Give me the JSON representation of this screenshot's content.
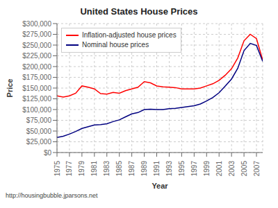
{
  "chart_data": {
    "type": "line",
    "title": "United States House Prices",
    "x_label": "Year",
    "y_label": "Price",
    "annotations": [
      "http://housingbubble.jparsons.net"
    ],
    "x": [
      1975,
      1976,
      1977,
      1978,
      1979,
      1980,
      1981,
      1982,
      1983,
      1984,
      1985,
      1986,
      1987,
      1988,
      1989,
      1990,
      1991,
      1992,
      1993,
      1994,
      1995,
      1996,
      1997,
      1998,
      1999,
      2000,
      2001,
      2002,
      2003,
      2004,
      2005,
      2006,
      2007,
      2008
    ],
    "series": [
      {
        "name": "Inflation-adjusted house prices",
        "color": "red",
        "values": [
          132000,
          129000,
          132000,
          138000,
          155000,
          152000,
          148000,
          137000,
          136000,
          140000,
          138000,
          144000,
          148000,
          152000,
          165000,
          162000,
          155000,
          153000,
          152000,
          151000,
          148000,
          148000,
          148000,
          150000,
          155000,
          160000,
          168000,
          180000,
          195000,
          220000,
          260000,
          275000,
          265000,
          215000
        ]
      },
      {
        "name": "Nominal house prices",
        "color": "#000080",
        "values": [
          35000,
          38000,
          43000,
          49000,
          56000,
          60000,
          64000,
          65000,
          67000,
          72000,
          76000,
          83000,
          90000,
          93000,
          100000,
          101000,
          100000,
          100000,
          102000,
          103000,
          105000,
          107000,
          109000,
          113000,
          120000,
          128000,
          139000,
          155000,
          171000,
          196000,
          237000,
          254000,
          249000,
          212000
        ]
      }
    ],
    "xlim": [
      1975,
      2008
    ],
    "xticks": [
      1975,
      1977,
      1979,
      1981,
      1983,
      1985,
      1987,
      1989,
      1991,
      1993,
      1995,
      1997,
      1999,
      2001,
      2003,
      2005,
      2007
    ],
    "ylim": [
      0,
      300000
    ],
    "yticks": [
      {
        "value": 0,
        "label": "$0"
      },
      {
        "value": 25000,
        "label": "$25,000"
      },
      {
        "value": 50000,
        "label": "$50,000"
      },
      {
        "value": 75000,
        "label": "$75,000"
      },
      {
        "value": 100000,
        "label": "$100,000"
      },
      {
        "value": 125000,
        "label": "$125,000"
      },
      {
        "value": 150000,
        "label": "$150,000"
      },
      {
        "value": 175000,
        "label": "$175,000"
      },
      {
        "value": 200000,
        "label": "$200,000"
      },
      {
        "value": 225000,
        "label": "$225,000"
      },
      {
        "value": 250000,
        "label": "$250,000"
      },
      {
        "value": 275000,
        "label": "$275,000"
      },
      {
        "value": 300000,
        "label": "$300,000"
      }
    ],
    "grid": true,
    "legend": "upper left"
  }
}
